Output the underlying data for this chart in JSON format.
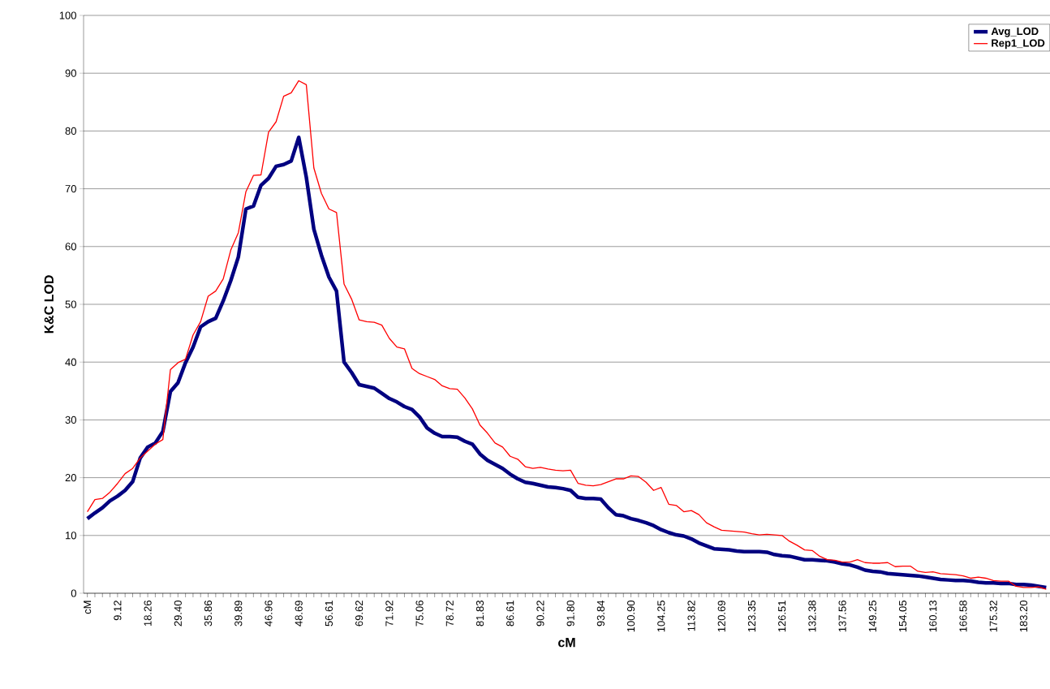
{
  "chart_data": {
    "type": "line",
    "xlabel": "cM",
    "ylabel": "K&C  LOD",
    "categories": [
      "cM",
      null,
      null,
      null,
      "9.12",
      null,
      null,
      null,
      "18.26",
      null,
      null,
      null,
      "29.40",
      null,
      null,
      null,
      "35.86",
      null,
      null,
      null,
      "39.89",
      null,
      null,
      null,
      "46.96",
      null,
      null,
      null,
      "48.69",
      null,
      null,
      null,
      "56.61",
      null,
      null,
      null,
      "69.62",
      null,
      null,
      null,
      "71.92",
      null,
      null,
      null,
      "75.06",
      null,
      null,
      null,
      "78.72",
      null,
      null,
      null,
      "81.83",
      null,
      null,
      null,
      "86.61",
      null,
      null,
      null,
      "90.22",
      null,
      null,
      null,
      "91.80",
      null,
      null,
      null,
      "93.84",
      null,
      null,
      null,
      "100.90",
      null,
      null,
      null,
      "104.25",
      null,
      null,
      null,
      "113.82",
      null,
      null,
      null,
      "120.69",
      null,
      null,
      null,
      "123.35",
      null,
      null,
      null,
      "126.51",
      null,
      null,
      null,
      "132.38",
      null,
      null,
      null,
      "137.56",
      null,
      null,
      null,
      "149.25",
      null,
      null,
      null,
      "154.05",
      null,
      null,
      null,
      "160.13",
      null,
      null,
      null,
      "166.58",
      null,
      null,
      null,
      "175.32",
      null,
      null,
      null,
      "183.20",
      null,
      null,
      null
    ],
    "series": [
      {
        "name": "Avg_LOD",
        "color": "#000080",
        "values": [
          12.9,
          13.9,
          14.8,
          16.0,
          16.8,
          17.8,
          19.3,
          23.4,
          25.3,
          26.0,
          28.0,
          34.9,
          36.4,
          39.9,
          42.6,
          46.1,
          47.0,
          47.6,
          50.6,
          54.1,
          58.2,
          66.5,
          67.0,
          70.6,
          71.8,
          73.9,
          74.2,
          74.8,
          78.9,
          72.0,
          63.0,
          58.5,
          54.7,
          52.3,
          40.0,
          38.2,
          36.1,
          35.8,
          35.5,
          34.6,
          33.7,
          33.1,
          32.3,
          31.8,
          30.5,
          28.6,
          27.7,
          27.1,
          27.1,
          27.0,
          26.3,
          25.8,
          24.1,
          23.0,
          22.3,
          21.6,
          20.6,
          19.8,
          19.2,
          19.0,
          18.7,
          18.4,
          18.3,
          18.1,
          17.8,
          16.6,
          16.4,
          16.4,
          16.3,
          14.8,
          13.6,
          13.4,
          12.9,
          12.6,
          12.2,
          11.7,
          11.0,
          10.5,
          10.1,
          9.9,
          9.4,
          8.7,
          8.2,
          7.7,
          7.6,
          7.5,
          7.3,
          7.2,
          7.2,
          7.2,
          7.1,
          6.7,
          6.5,
          6.4,
          6.1,
          5.8,
          5.8,
          5.7,
          5.6,
          5.4,
          5.1,
          4.9,
          4.5,
          4.0,
          3.8,
          3.7,
          3.4,
          3.3,
          3.2,
          3.1,
          3.0,
          2.8,
          2.6,
          2.4,
          2.3,
          2.2,
          2.2,
          2.1,
          1.9,
          1.8,
          1.8,
          1.7,
          1.7,
          1.5,
          1.5,
          1.4,
          1.2,
          1.0
        ]
      },
      {
        "name": "Rep1_LOD",
        "color": "#ff0000",
        "values": [
          14.1,
          16.2,
          16.4,
          17.5,
          19.0,
          20.7,
          21.6,
          23.4,
          24.6,
          25.8,
          26.6,
          38.7,
          39.9,
          40.5,
          44.7,
          47.0,
          51.4,
          52.3,
          54.4,
          59.4,
          62.4,
          69.5,
          72.3,
          72.4,
          79.8,
          81.6,
          86.0,
          86.6,
          88.7,
          88.0,
          73.6,
          69.2,
          66.5,
          65.9,
          53.5,
          50.9,
          47.3,
          47.0,
          46.9,
          46.4,
          44.1,
          42.6,
          42.3,
          38.9,
          38.0,
          37.5,
          37.0,
          35.9,
          35.4,
          35.3,
          33.8,
          31.9,
          29.1,
          27.7,
          26.0,
          25.3,
          23.7,
          23.2,
          21.9,
          21.6,
          21.8,
          21.5,
          21.3,
          21.2,
          21.3,
          19.0,
          18.7,
          18.6,
          18.8,
          19.3,
          19.8,
          19.8,
          20.3,
          20.2,
          19.2,
          17.8,
          18.3,
          15.4,
          15.2,
          14.1,
          14.3,
          13.6,
          12.2,
          11.5,
          10.9,
          10.8,
          10.7,
          10.6,
          10.3,
          10.1,
          10.2,
          10.1,
          10.0,
          9.0,
          8.3,
          7.5,
          7.4,
          6.4,
          5.8,
          5.7,
          5.4,
          5.4,
          5.8,
          5.3,
          5.2,
          5.2,
          5.3,
          4.6,
          4.7,
          4.7,
          3.8,
          3.6,
          3.7,
          3.4,
          3.3,
          3.2,
          3.0,
          2.6,
          2.8,
          2.6,
          2.2,
          2.1,
          2.1,
          1.2,
          1.0,
          1.0,
          1.1,
          0.7
        ]
      }
    ],
    "ylim": [
      0,
      100
    ],
    "yticks": [
      0,
      10,
      20,
      30,
      40,
      50,
      60,
      70,
      80,
      90,
      100
    ],
    "grid": "y",
    "legend": "top right",
    "marker": "none",
    "line_style": "solid"
  }
}
